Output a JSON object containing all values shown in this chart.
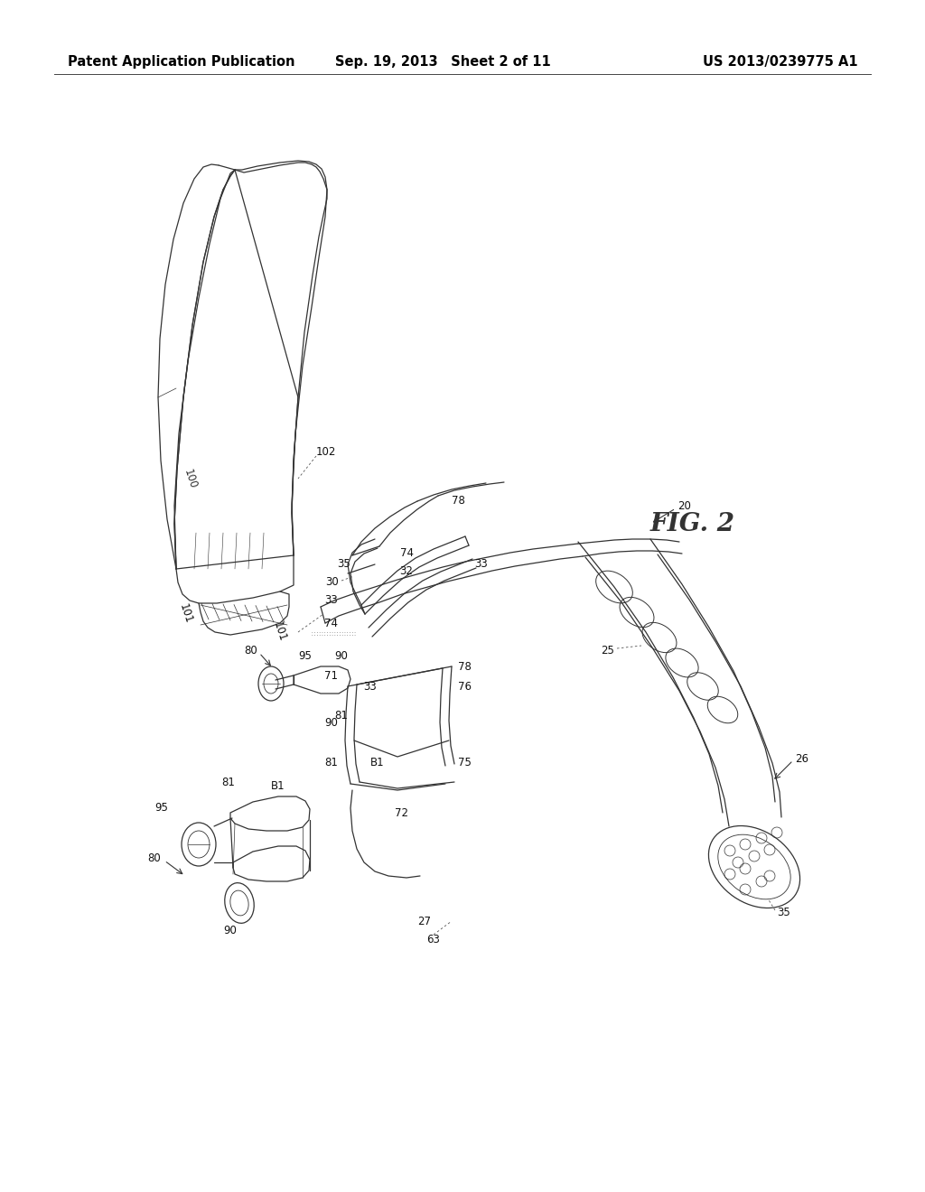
{
  "background_color": "#ffffff",
  "header_left": "Patent Application Publication",
  "header_center": "Sep. 19, 2013 Sheet 2 of 11",
  "header_right": "US 2013/0239775 A1",
  "fig_label": "FIG. 2",
  "line_color": "#333333",
  "dashed_color": "#555555",
  "label_color": "#111111",
  "header_fontsize": 10.5,
  "label_fontsize": 8.5,
  "fig_label_fontsize": 20,
  "lw": 0.9
}
